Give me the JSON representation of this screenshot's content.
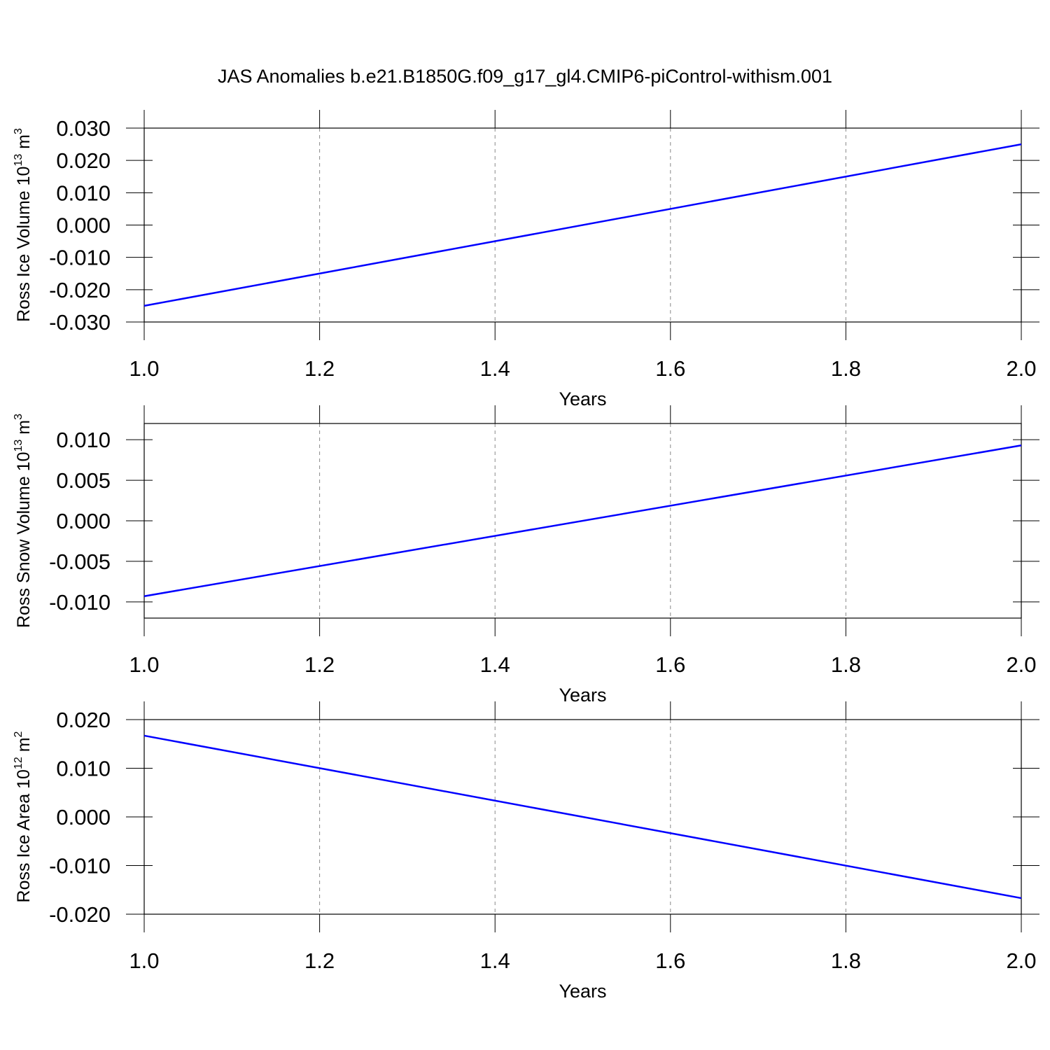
{
  "title": "JAS Anomalies b.e21.B1850G.f09_g17_gl4.CMIP6-piControl-withism.001",
  "chart_data": [
    {
      "type": "line",
      "xlabel": "Years",
      "ylabel": [
        "Ross Ice Volume 10",
        "13",
        " m",
        "3"
      ],
      "x": [
        1.0,
        2.0
      ],
      "series": [
        {
          "color": "#0000ff",
          "values": [
            -0.025,
            0.025
          ]
        }
      ],
      "xlim": [
        1.0,
        2.0
      ],
      "xticks": [
        {
          "value": 1.0,
          "label": "1.0"
        },
        1.2,
        1.4,
        1.6,
        1.8,
        {
          "value": 2.0,
          "label": "2.0"
        }
      ],
      "ylim": [
        -0.03,
        0.03
      ],
      "yticks": [
        {
          "value": -0.03,
          "label": "-0.030"
        },
        {
          "value": -0.02,
          "label": "-0.020"
        },
        {
          "value": -0.01,
          "label": "-0.010"
        },
        {
          "value": 0,
          "label": "0.000"
        },
        {
          "value": 0.01,
          "label": "0.010"
        },
        {
          "value": 0.02,
          "label": "0.020"
        },
        {
          "value": 0.03,
          "label": "0.030"
        }
      ],
      "grid": true
    },
    {
      "type": "line",
      "xlabel": "Years",
      "ylabel": [
        "Ross Snow Volume 10",
        "13",
        " m",
        "3"
      ],
      "x": [
        1.0,
        2.0
      ],
      "series": [
        {
          "color": "#0000ff",
          "values": [
            -0.0093,
            0.0093
          ]
        }
      ],
      "xlim": [
        1.0,
        2.0
      ],
      "xticks": [
        {
          "value": 1.0,
          "label": "1.0"
        },
        1.2,
        1.4,
        1.6,
        1.8,
        {
          "value": 2.0,
          "label": "2.0"
        }
      ],
      "ylim": [
        -0.012,
        0.012
      ],
      "yticks": [
        {
          "value": -0.01,
          "label": "-0.010"
        },
        {
          "value": -0.005,
          "label": "-0.005"
        },
        {
          "value": 0,
          "label": "0.000"
        },
        {
          "value": 0.005,
          "label": "0.005"
        },
        {
          "value": 0.01,
          "label": "0.010"
        }
      ],
      "grid": true
    },
    {
      "type": "line",
      "xlabel": "Years",
      "ylabel": [
        "Ross Ice Area 10",
        "12",
        " m",
        "2"
      ],
      "x": [
        1.0,
        2.0
      ],
      "series": [
        {
          "color": "#0000ff",
          "values": [
            0.0167,
            -0.0167
          ]
        }
      ],
      "xlim": [
        1.0,
        2.0
      ],
      "xticks": [
        {
          "value": 1.0,
          "label": "1.0"
        },
        1.2,
        1.4,
        1.6,
        1.8,
        {
          "value": 2.0,
          "label": "2.0"
        }
      ],
      "ylim": [
        -0.02,
        0.02
      ],
      "yticks": [
        {
          "value": -0.02,
          "label": "-0.020"
        },
        {
          "value": -0.01,
          "label": "-0.010"
        },
        {
          "value": 0,
          "label": "0.000"
        },
        {
          "value": 0.01,
          "label": "0.010"
        },
        {
          "value": 0.02,
          "label": "0.020"
        }
      ],
      "grid": true
    }
  ]
}
